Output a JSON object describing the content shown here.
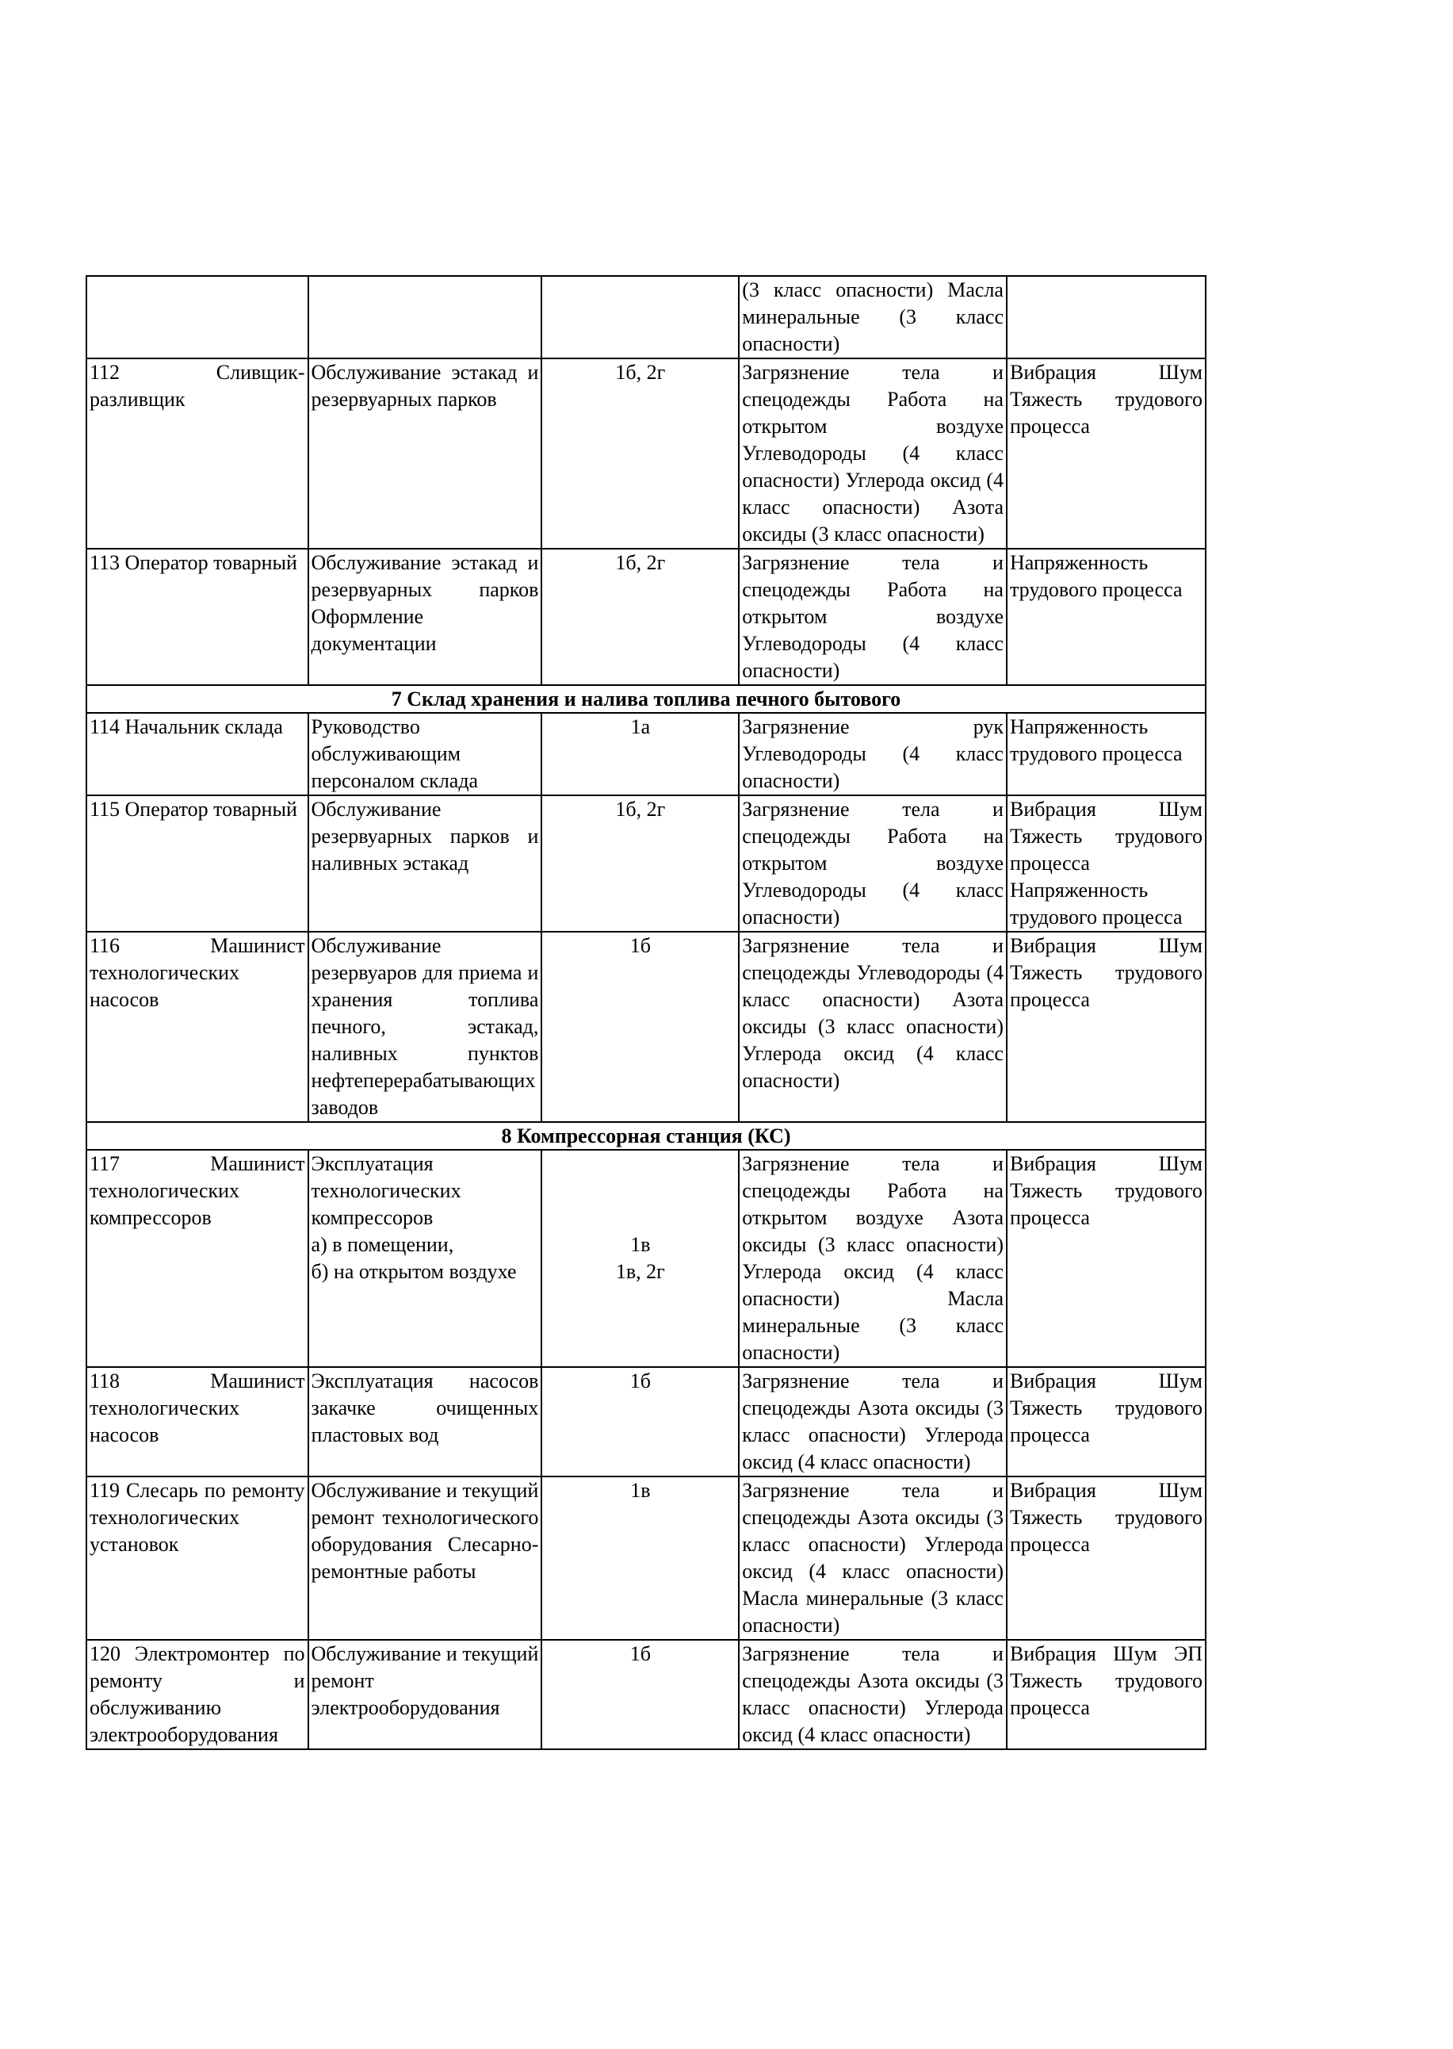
{
  "rows": [
    {
      "type": "row",
      "num_title": "",
      "work": "",
      "code": "",
      "factors": "(3 класс опасности) Масла минеральные (3 класс опасности)",
      "other": ""
    },
    {
      "type": "row",
      "num_title": "112 Сливщик-разливщик",
      "work": "Обслуживание эстакад и резервуарных парков",
      "code": "1б, 2г",
      "factors": "Загрязнение тела и спецодежды Работа на открытом воздухе Углеводороды (4 класс опасности) Углерода оксид (4 класс опасности) Азота оксиды (3 класс опасности)",
      "other": "Вибрация Шум Тяжесть трудового процесса"
    },
    {
      "type": "row",
      "num_title": "113 Оператор товарный",
      "work": "Обслуживание эстакад и резервуарных парков Оформление документации",
      "code": "1б, 2г",
      "factors": "Загрязнение тела и спецодежды Работа на открытом воздухе Углеводороды (4 класс опасности)",
      "other": "Напряженность трудового процесса"
    },
    {
      "type": "section",
      "title": "7 Склад хранения и налива топлива печного бытового"
    },
    {
      "type": "row",
      "num_title": "114 Начальник склада",
      "work": "Руководство обслуживающим персоналом склада",
      "code": "1а",
      "factors": "Загрязнение рук Углеводороды (4 класс опасности)",
      "other": "Напряженность трудового процесса"
    },
    {
      "type": "row",
      "num_title": "115 Оператор товарный",
      "work": "Обслуживание резервуарных парков и наливных эстакад",
      "code": "1б, 2г",
      "factors": "Загрязнение тела и спецодежды Работа на открытом воздухе Углеводороды (4 класс опасности)",
      "other": "Вибрация Шум Тяжесть трудового процесса Напряженность трудового процесса"
    },
    {
      "type": "row",
      "num_title": "116 Машинист технологических насосов",
      "work": "Обслуживание резервуаров для приема и хранения топлива печного, эстакад, наливных пунктов нефтеперерабатывающих заводов",
      "code": "1б",
      "factors": "Загрязнение тела и спецодежды Углеводороды (4 класс опасности) Азота оксиды (3 класс опасности) Углерода оксид (4 класс опасности)",
      "other": "Вибрация Шум Тяжесть трудового процесса"
    },
    {
      "type": "section",
      "title": "8 Компрессорная станция (КС)"
    },
    {
      "type": "row",
      "num_title": "117 Машинист технологических компрессоров",
      "work": "Эксплуатация технологических компрессоров\nа) в помещении,\nб) на открытом воздухе",
      "code": "\n\n\n1в\n1в, 2г",
      "factors": "Загрязнение тела и спецодежды Работа на открытом воздухе Азота оксиды (3 класс опасности) Углерода оксид (4 класс опасности) Масла минеральные (3 класс опасности)",
      "other": "Вибрация Шум Тяжесть трудового процесса"
    },
    {
      "type": "row",
      "num_title": "118 Машинист технологических насосов",
      "work": "Эксплуатация насосов закачке очищенных пластовых вод",
      "code": "1б",
      "factors": "Загрязнение тела и спецодежды Азота оксиды (3 класс опасности) Углерода оксид (4 класс опасности)",
      "other": "Вибрация Шум Тяжесть трудового процесса"
    },
    {
      "type": "row",
      "num_title": "119 Слесарь по ремонту технологических установок",
      "work": "Обслуживание и текущий ремонт технологического оборудования Слесарно-ремонтные работы",
      "code": "1в",
      "factors": "Загрязнение тела и спецодежды Азота оксиды (3 класс опасности) Углерода оксид (4 класс опасности) Масла минеральные (3 класс опасности)",
      "other": "Вибрация Шум Тяжесть трудового процесса"
    },
    {
      "type": "row",
      "num_title": "120 Электромонтер по ремонту и обслуживанию электрооборудования",
      "work": "Обслуживание и текущий ремонт электрооборудования",
      "code": "1б",
      "factors": "Загрязнение тела и спецодежды Азота оксиды (3 класс опасности) Углерода оксид (4 класс опасности)",
      "other": "Вибрация Шум ЭП Тяжесть трудового процесса"
    }
  ]
}
